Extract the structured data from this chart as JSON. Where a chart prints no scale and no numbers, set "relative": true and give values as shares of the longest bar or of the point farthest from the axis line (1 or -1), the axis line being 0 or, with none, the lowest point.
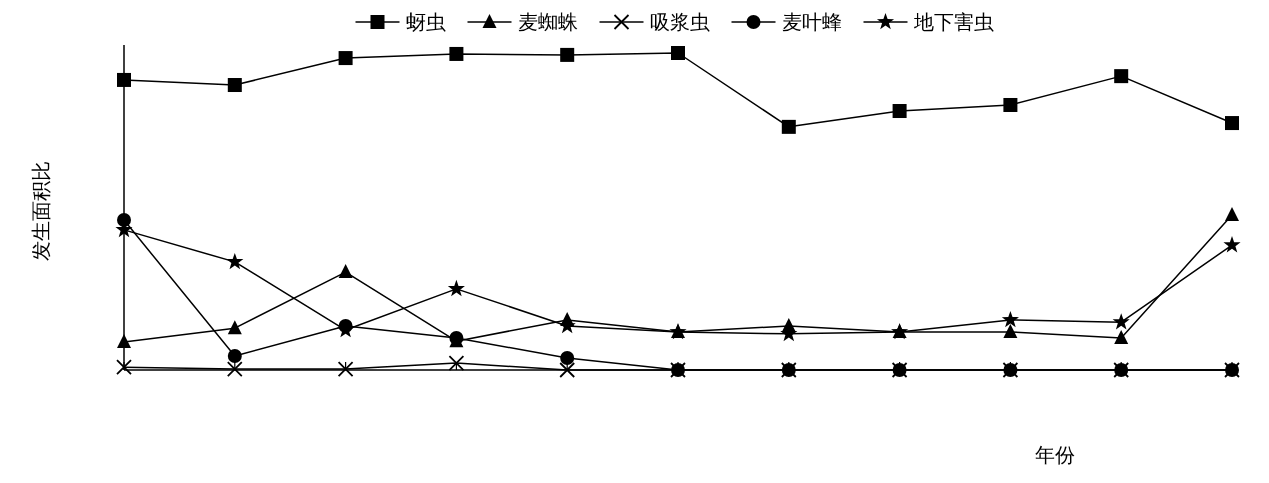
{
  "chart_data": {
    "type": "line",
    "relative": true,
    "ylabel": "发生面积比",
    "xlabel": "年份",
    "legend": "top",
    "categories": [
      null,
      null,
      null,
      null,
      null,
      null,
      null,
      null,
      null,
      null,
      null
    ],
    "series": [
      {
        "name": "蚜虫",
        "color": "#000000",
        "marker": "square",
        "values": [
          0.915,
          0.899,
          0.984,
          0.997,
          0.994,
          1,
          0.767,
          0.817,
          0.836,
          0.927,
          0.779
        ]
      },
      {
        "name": "麦蜘蛛",
        "color": "#000000",
        "marker": "triangle",
        "values": [
          0.088,
          0.132,
          0.309,
          0.091,
          0.158,
          0.12,
          0.139,
          0.12,
          0.12,
          0.101,
          0.489
        ]
      },
      {
        "name": "吸浆虫",
        "color": "#000000",
        "marker": "cross",
        "values": [
          0.009,
          0.003,
          0.003,
          0.022,
          0,
          0,
          0,
          0,
          0,
          0,
          0
        ]
      },
      {
        "name": "麦叶蜂",
        "color": "#000000",
        "marker": "circle",
        "values": [
          0.473,
          0.044,
          0.139,
          0.101,
          0.038,
          0,
          0,
          0,
          0,
          0,
          0
        ]
      },
      {
        "name": "地下害虫",
        "color": "#000000",
        "marker": "star",
        "values": [
          0.442,
          0.341,
          0.126,
          0.256,
          0.139,
          0.12,
          0.114,
          0.12,
          0.158,
          0.151,
          0.394
        ]
      }
    ]
  }
}
